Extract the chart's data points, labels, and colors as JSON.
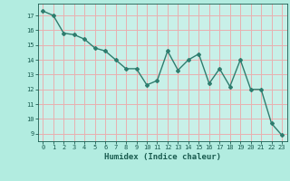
{
  "x": [
    0,
    1,
    2,
    3,
    4,
    5,
    6,
    7,
    8,
    9,
    10,
    11,
    12,
    13,
    14,
    15,
    16,
    17,
    18,
    19,
    20,
    21,
    22,
    23
  ],
  "y": [
    17.3,
    17.0,
    15.8,
    15.7,
    15.4,
    14.8,
    14.6,
    14.0,
    13.4,
    13.4,
    12.3,
    12.6,
    14.6,
    13.3,
    14.0,
    14.4,
    12.4,
    13.4,
    12.2,
    14.0,
    12.0,
    12.0,
    9.7,
    8.9
  ],
  "line_color": "#2e7d6e",
  "bg_color": "#b2ece0",
  "plot_bg_color": "#c8f0e8",
  "grid_color": "#e8b0b0",
  "bottom_bar_color": "#5bc8b8",
  "xlabel": "Humidex (Indice chaleur)",
  "ylabel_ticks": [
    9,
    10,
    11,
    12,
    13,
    14,
    15,
    16,
    17
  ],
  "xlim": [
    -0.5,
    23.5
  ],
  "ylim": [
    8.5,
    17.8
  ],
  "xtick_labels": [
    "0",
    "1",
    "2",
    "3",
    "4",
    "5",
    "6",
    "7",
    "8",
    "9",
    "10",
    "11",
    "12",
    "13",
    "14",
    "15",
    "16",
    "17",
    "18",
    "19",
    "20",
    "21",
    "22",
    "23"
  ],
  "tick_color": "#1a5c50",
  "label_color": "#1a5c50",
  "marker": "D",
  "marker_size": 2.0,
  "line_width": 1.0,
  "tick_fontsize": 5.0,
  "xlabel_fontsize": 6.5
}
